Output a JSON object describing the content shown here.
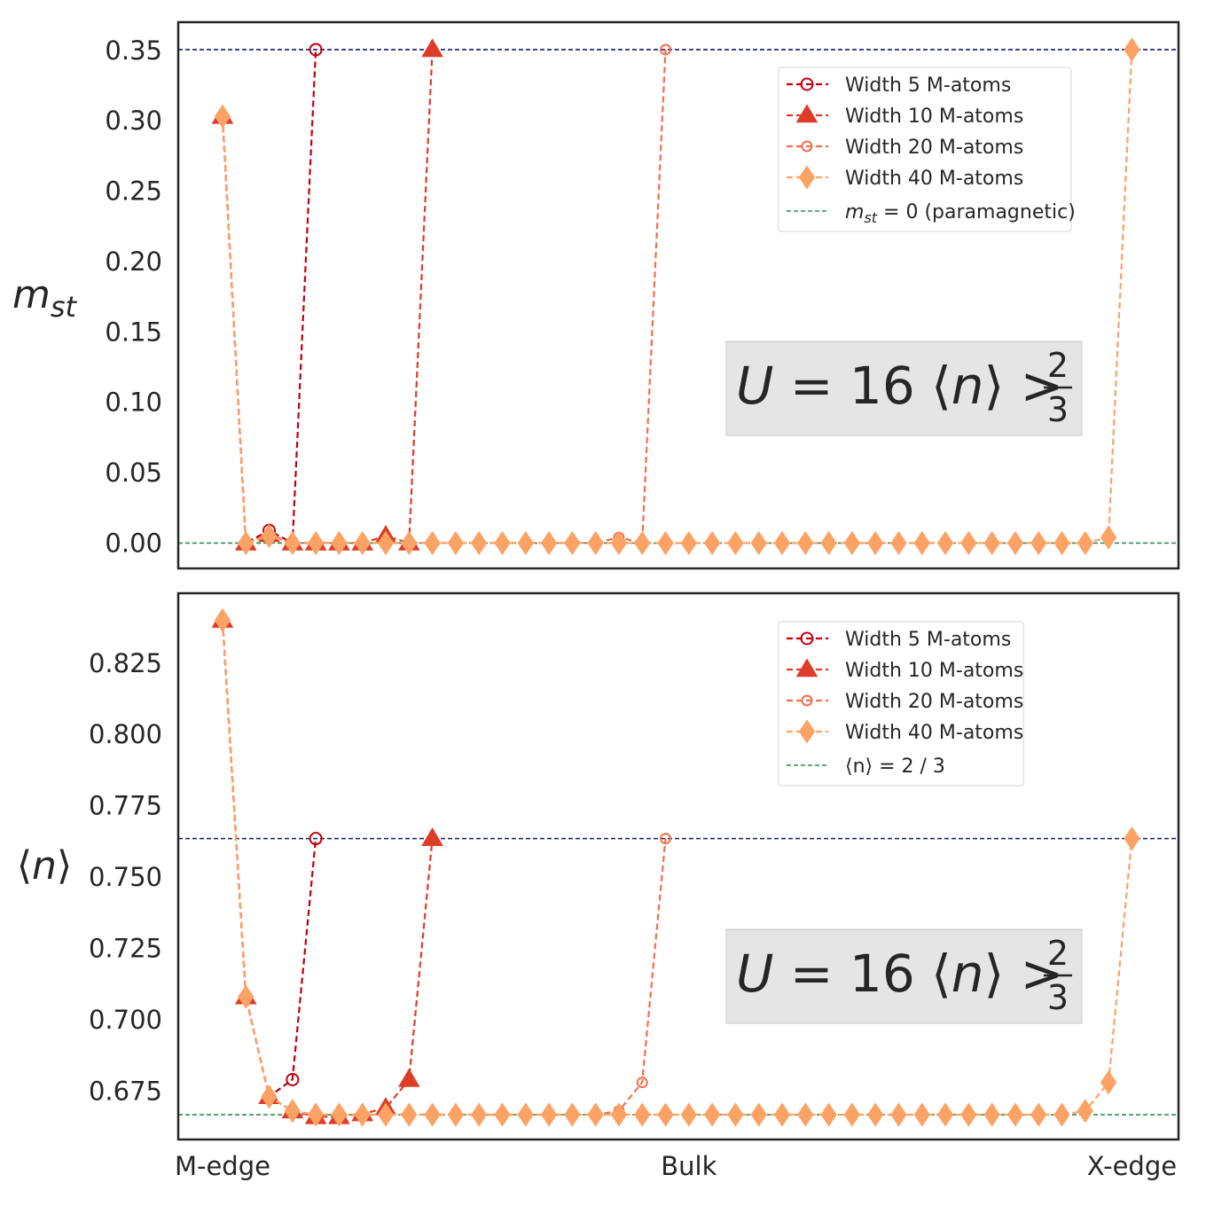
{
  "chart_data": [
    {
      "type": "line",
      "ylabel": "m_st",
      "ylim": [
        -0.018,
        0.37
      ],
      "yticks": [
        "0.00",
        "0.05",
        "0.10",
        "0.15",
        "0.20",
        "0.25",
        "0.30",
        "0.35"
      ],
      "xticks": [
        {
          "at": 0,
          "label": "M-edge"
        },
        {
          "at": 20,
          "label": "Bulk"
        },
        {
          "at": 39,
          "label": "X-edge"
        }
      ],
      "xlim": [
        -1.9,
        41.0
      ],
      "annotation": {
        "main": "U = 16 ⟨n⟩ >",
        "num": "2",
        "den": "3"
      },
      "legend_position": "upper-right",
      "ref_lines": [
        {
          "name": "m_st = 0 (paramagnetic)",
          "value": 0.0,
          "color": "#2e8b57",
          "legend": "m",
          "legend_sub": "st",
          "legend_rest": " = 0 (paramagnetic)"
        },
        {
          "name": "",
          "value": 0.3505,
          "color": "#191970"
        }
      ],
      "series": [
        {
          "name": "Width 5 M-atoms",
          "marker": "circle",
          "color": "#c0000c",
          "size": 13,
          "x": [
            4
          ],
          "y": [
            0.3505
          ]
        },
        {
          "name": "Width 10 M-atoms",
          "marker": "triangle",
          "color": "#de3c28",
          "size": 20,
          "x": [
            9
          ],
          "y": [
            0.3505
          ]
        },
        {
          "name": "Width 20 M-atoms",
          "marker": "circle-small",
          "color": "#f0704a",
          "size": 11,
          "x": [
            19
          ],
          "y": [
            0.3505
          ]
        },
        {
          "name": "Width 40 M-atoms",
          "marker": "diamond",
          "color": "#fca265",
          "size": 17,
          "x": [
            0,
            1,
            2,
            3,
            4,
            5,
            6,
            7,
            8,
            9,
            10,
            11,
            12,
            13,
            14,
            15,
            16,
            17,
            18,
            19,
            20,
            21,
            22,
            23,
            24,
            25,
            26,
            27,
            28,
            29,
            30,
            31,
            32,
            33,
            34,
            35,
            36,
            37,
            38,
            39
          ],
          "y": [
            0.303,
            0.0,
            0.005,
            0.0,
            0.0,
            0.0,
            0.0,
            0.0,
            0.0,
            0.0,
            0.0,
            0.0,
            0.0,
            0.0,
            0.0,
            0.0,
            0.0,
            0.0,
            0.0,
            0.0,
            0.0,
            0.0,
            0.0,
            0.0,
            0.0,
            0.0,
            0.0,
            0.0,
            0.0,
            0.0,
            0.0,
            0.0,
            0.0,
            0.0,
            0.0,
            0.0,
            0.0,
            0.0,
            0.0,
            0.3505
          ]
        }
      ],
      "series_full": [
        {
          "x": [
            0,
            1,
            2,
            3,
            4
          ],
          "y": [
            0.303,
            0.0,
            0.009,
            0.0,
            0.3505
          ]
        },
        {
          "x": [
            0,
            1,
            2,
            3,
            4,
            5,
            6,
            7,
            8,
            9
          ],
          "y": [
            0.303,
            0.0,
            0.006,
            0.0,
            0.0,
            0.0,
            0.0,
            0.005,
            0.0,
            0.3505
          ]
        },
        {
          "x": [
            0,
            1,
            2,
            3,
            4,
            5,
            6,
            7,
            8,
            9,
            10,
            11,
            12,
            13,
            14,
            15,
            16,
            17,
            18,
            19
          ],
          "y": [
            0.303,
            0.0,
            0.005,
            0.0,
            0.0,
            0.0,
            0.0,
            0.0,
            0.0,
            0.0,
            0.0,
            0.0,
            0.0,
            0.0,
            0.0,
            0.0,
            0.0,
            0.004,
            0.0,
            0.3505
          ]
        },
        {
          "x": [
            0,
            1,
            2,
            3,
            4,
            5,
            6,
            7,
            8,
            9,
            10,
            11,
            12,
            13,
            14,
            15,
            16,
            17,
            18,
            19,
            20,
            21,
            22,
            23,
            24,
            25,
            26,
            27,
            28,
            29,
            30,
            31,
            32,
            33,
            34,
            35,
            36,
            37,
            38,
            39
          ],
          "y": [
            0.303,
            0.0,
            0.005,
            0.0,
            0.0,
            0.0,
            0.0,
            0.0,
            0.0,
            0.0,
            0.0,
            0.0,
            0.0,
            0.0,
            0.0,
            0.0,
            0.0,
            0.0,
            0.0,
            0.0,
            0.0,
            0.0,
            0.0,
            0.0,
            0.0,
            0.0,
            0.0,
            0.0,
            0.0,
            0.0,
            0.0,
            0.0,
            0.0,
            0.0,
            0.0,
            0.0,
            0.0,
            0.0,
            0.004,
            0.3505
          ]
        }
      ]
    },
    {
      "type": "line",
      "ylabel": "⟨n⟩",
      "ylim": [
        0.658,
        0.8495
      ],
      "yticks": [
        "0.675",
        "0.700",
        "0.725",
        "0.750",
        "0.775",
        "0.800",
        "0.825"
      ],
      "xticks": [
        {
          "at": 0,
          "label": "M-edge"
        },
        {
          "at": 20,
          "label": "Bulk"
        },
        {
          "at": 39,
          "label": "X-edge"
        }
      ],
      "xlim": [
        -1.9,
        41.0
      ],
      "annotation": {
        "main": "U = 16 ⟨n⟩ >",
        "num": "2",
        "den": "3"
      },
      "legend_position": "upper-right",
      "ref_lines": [
        {
          "name": "⟨n⟩ = 2 / 3",
          "value": 0.6667,
          "color": "#2e8b57",
          "legend": "⟨n⟩ = 2 / 3"
        },
        {
          "name": "",
          "value": 0.7635,
          "color": "#191970"
        }
      ],
      "series": [
        {
          "name": "Width 5 M-atoms",
          "marker": "circle",
          "color": "#c0000c",
          "size": 13
        },
        {
          "name": "Width 10 M-atoms",
          "marker": "triangle",
          "color": "#de3c28",
          "size": 20
        },
        {
          "name": "Width 20 M-atoms",
          "marker": "circle-small",
          "color": "#f0704a",
          "size": 11
        },
        {
          "name": "Width 40 M-atoms",
          "marker": "diamond",
          "color": "#fca265",
          "size": 17
        }
      ],
      "series_full": [
        {
          "x": [
            0,
            1,
            2,
            3,
            4
          ],
          "y": [
            0.84,
            0.708,
            0.673,
            0.679,
            0.7635
          ]
        },
        {
          "x": [
            0,
            1,
            2,
            3,
            4,
            5,
            6,
            7,
            8,
            9
          ],
          "y": [
            0.84,
            0.708,
            0.673,
            0.668,
            0.666,
            0.666,
            0.667,
            0.669,
            0.679,
            0.7635
          ]
        },
        {
          "x": [
            0,
            1,
            2,
            3,
            4,
            5,
            6,
            7,
            8,
            9,
            10,
            11,
            12,
            13,
            14,
            15,
            16,
            17,
            18,
            19
          ],
          "y": [
            0.84,
            0.708,
            0.673,
            0.668,
            0.6667,
            0.6667,
            0.6667,
            0.6667,
            0.6667,
            0.6667,
            0.6667,
            0.6667,
            0.6667,
            0.6667,
            0.6667,
            0.6667,
            0.6667,
            0.668,
            0.678,
            0.7635
          ]
        },
        {
          "x": [
            0,
            1,
            2,
            3,
            4,
            5,
            6,
            7,
            8,
            9,
            10,
            11,
            12,
            13,
            14,
            15,
            16,
            17,
            18,
            19,
            20,
            21,
            22,
            23,
            24,
            25,
            26,
            27,
            28,
            29,
            30,
            31,
            32,
            33,
            34,
            35,
            36,
            37,
            38,
            39
          ],
          "y": [
            0.84,
            0.708,
            0.673,
            0.668,
            0.6667,
            0.6667,
            0.6667,
            0.6667,
            0.6667,
            0.6667,
            0.6667,
            0.6667,
            0.6667,
            0.6667,
            0.6667,
            0.6667,
            0.6667,
            0.6667,
            0.6667,
            0.6667,
            0.6667,
            0.6667,
            0.6667,
            0.6667,
            0.6667,
            0.6667,
            0.6667,
            0.6667,
            0.6667,
            0.6667,
            0.6667,
            0.6667,
            0.6667,
            0.6667,
            0.6667,
            0.6667,
            0.6667,
            0.668,
            0.678,
            0.7635
          ]
        }
      ]
    }
  ]
}
